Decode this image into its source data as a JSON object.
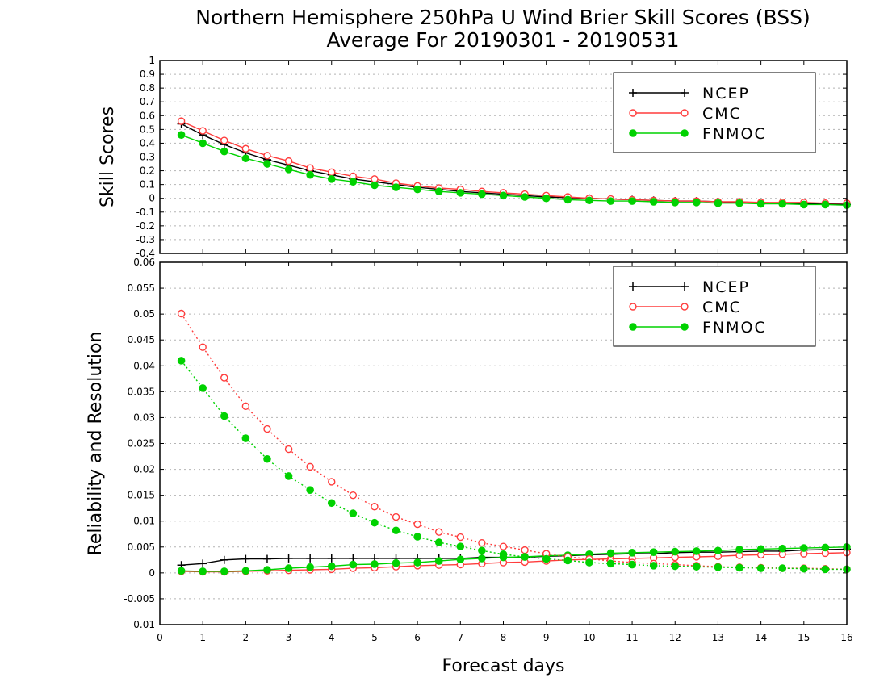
{
  "title_line1": "Northern Hemisphere 250hPa U Wind Brier Skill Scores (BSS)",
  "title_line2": "Average For 20190301 - 20190531",
  "colors": {
    "NCEP": "#000000",
    "CMC": "#ff3c3c",
    "FNMOC": "#00d200"
  },
  "chart_data": [
    {
      "type": "line",
      "panel": "top",
      "ylabel": "Skill Scores",
      "xlabel": "",
      "xlim": [
        0,
        16
      ],
      "ylim": [
        -0.4,
        1
      ],
      "yticks": [
        -0.4,
        -0.3,
        -0.2,
        -0.1,
        0,
        0.1,
        0.2,
        0.3,
        0.4,
        0.5,
        0.6,
        0.7,
        0.8,
        0.9,
        1
      ],
      "ytick_labels": [
        "-0.4",
        "-0.3",
        "-0.2",
        "-0.1",
        "0",
        "0.1",
        "0.2",
        "0.3",
        "0.4",
        "0.5",
        "0.6",
        "0.7",
        "0.8",
        "0.9",
        "1"
      ],
      "grid": true,
      "legend": "top-right",
      "x": [
        0.5,
        1,
        1.5,
        2,
        2.5,
        3,
        3.5,
        4,
        4.5,
        5,
        5.5,
        6,
        6.5,
        7,
        7.5,
        8,
        8.5,
        9,
        9.5,
        10,
        10.5,
        11,
        11.5,
        12,
        12.5,
        13,
        13.5,
        14,
        14.5,
        15,
        15.5,
        16
      ],
      "series": [
        {
          "name": "NCEP",
          "marker": "plus",
          "style": "solid",
          "values": [
            0.54,
            0.46,
            0.39,
            0.33,
            0.28,
            0.24,
            0.2,
            0.17,
            0.14,
            0.12,
            0.1,
            0.08,
            0.065,
            0.05,
            0.04,
            0.03,
            0.02,
            0.01,
            0.005,
            0.0,
            -0.005,
            -0.01,
            -0.015,
            -0.02,
            -0.02,
            -0.025,
            -0.03,
            -0.03,
            -0.035,
            -0.04,
            -0.04,
            -0.045
          ]
        },
        {
          "name": "CMC",
          "marker": "open-circle",
          "style": "solid",
          "values": [
            0.56,
            0.49,
            0.42,
            0.36,
            0.31,
            0.27,
            0.22,
            0.19,
            0.16,
            0.14,
            0.11,
            0.09,
            0.075,
            0.065,
            0.05,
            0.04,
            0.03,
            0.02,
            0.01,
            0.0,
            -0.005,
            -0.01,
            -0.015,
            -0.02,
            -0.02,
            -0.025,
            -0.025,
            -0.03,
            -0.03,
            -0.03,
            -0.035,
            -0.035
          ]
        },
        {
          "name": "FNMOC",
          "marker": "filled-circle",
          "style": "solid",
          "values": [
            0.46,
            0.4,
            0.34,
            0.29,
            0.25,
            0.21,
            0.17,
            0.14,
            0.12,
            0.095,
            0.08,
            0.065,
            0.05,
            0.04,
            0.03,
            0.02,
            0.01,
            0.0,
            -0.01,
            -0.015,
            -0.02,
            -0.02,
            -0.025,
            -0.03,
            -0.03,
            -0.035,
            -0.035,
            -0.04,
            -0.04,
            -0.045,
            -0.045,
            -0.05
          ]
        }
      ]
    },
    {
      "type": "line",
      "panel": "bottom",
      "ylabel": "Reliability and Resolution",
      "xlabel": "Forecast days",
      "xlim": [
        0,
        16
      ],
      "ylim": [
        -0.01,
        0.06
      ],
      "xticks": [
        0,
        1,
        2,
        3,
        4,
        5,
        6,
        7,
        8,
        9,
        10,
        11,
        12,
        13,
        14,
        15,
        16
      ],
      "xtick_labels": [
        "0",
        "1",
        "2",
        "3",
        "4",
        "5",
        "6",
        "7",
        "8",
        "9",
        "10",
        "11",
        "12",
        "13",
        "14",
        "15",
        "16"
      ],
      "yticks": [
        -0.01,
        -0.005,
        0,
        0.005,
        0.01,
        0.015,
        0.02,
        0.025,
        0.03,
        0.035,
        0.04,
        0.045,
        0.05,
        0.055,
        0.06
      ],
      "ytick_labels": [
        "-0.01",
        "-0.005",
        "0",
        "0.005",
        "0.01",
        "0.015",
        "0.02",
        "0.025",
        "0.03",
        "0.035",
        "0.04",
        "0.045",
        "0.05",
        "0.055",
        "0.06"
      ],
      "grid": true,
      "legend": "top-right",
      "x": [
        0.5,
        1,
        1.5,
        2,
        2.5,
        3,
        3.5,
        4,
        4.5,
        5,
        5.5,
        6,
        6.5,
        7,
        7.5,
        8,
        8.5,
        9,
        9.5,
        10,
        10.5,
        11,
        11.5,
        12,
        12.5,
        13,
        13.5,
        14,
        14.5,
        15,
        15.5,
        16
      ],
      "series": [
        {
          "name": "NCEP",
          "group": "reliability",
          "marker": "plus",
          "style": "solid",
          "values": [
            0.0015,
            0.0018,
            0.0025,
            0.0027,
            0.0027,
            0.0028,
            0.0028,
            0.0028,
            0.0028,
            0.0028,
            0.0028,
            0.0028,
            0.0028,
            0.0028,
            0.003,
            0.003,
            0.003,
            0.0032,
            0.0033,
            0.0035,
            0.0036,
            0.0037,
            0.0037,
            0.0039,
            0.004,
            0.004,
            0.0041,
            0.0042,
            0.0042,
            0.0044,
            0.0045,
            0.0046
          ]
        },
        {
          "name": "CMC",
          "group": "reliability",
          "marker": "open-circle",
          "style": "solid",
          "values": [
            0.0003,
            0.0002,
            0.0002,
            0.0003,
            0.0004,
            0.0005,
            0.0006,
            0.0007,
            0.0009,
            0.001,
            0.0012,
            0.0014,
            0.0015,
            0.0016,
            0.0018,
            0.002,
            0.0021,
            0.0023,
            0.0025,
            0.0026,
            0.0027,
            0.0028,
            0.0029,
            0.003,
            0.0031,
            0.0032,
            0.0034,
            0.0035,
            0.0036,
            0.0037,
            0.0038,
            0.0039
          ]
        },
        {
          "name": "FNMOC",
          "group": "reliability",
          "marker": "filled-circle",
          "style": "solid",
          "values": [
            0.0004,
            0.0003,
            0.0003,
            0.0004,
            0.0006,
            0.0009,
            0.0011,
            0.0013,
            0.0016,
            0.0017,
            0.0019,
            0.002,
            0.0023,
            0.0026,
            0.0028,
            0.003,
            0.0031,
            0.0033,
            0.0034,
            0.0036,
            0.0038,
            0.0039,
            0.004,
            0.0041,
            0.0042,
            0.0043,
            0.0045,
            0.0046,
            0.0047,
            0.0048,
            0.0049,
            0.005
          ]
        },
        {
          "name": "CMC",
          "group": "resolution",
          "marker": "open-circle",
          "style": "dotted",
          "values": [
            0.0501,
            0.0436,
            0.0377,
            0.0322,
            0.0278,
            0.0239,
            0.0205,
            0.0176,
            0.015,
            0.0128,
            0.0108,
            0.0094,
            0.0079,
            0.0069,
            0.0058,
            0.0051,
            0.0044,
            0.0037,
            0.0031,
            0.0027,
            0.0023,
            0.002,
            0.0018,
            0.0016,
            0.0014,
            0.0012,
            0.0011,
            0.001,
            0.0009,
            0.0009,
            0.0008,
            0.0007
          ]
        },
        {
          "name": "FNMOC",
          "group": "resolution",
          "marker": "filled-circle",
          "style": "dotted",
          "values": [
            0.041,
            0.0357,
            0.0303,
            0.026,
            0.022,
            0.0187,
            0.016,
            0.0135,
            0.0115,
            0.0097,
            0.0082,
            0.007,
            0.0059,
            0.0051,
            0.0043,
            0.0036,
            0.0031,
            0.0027,
            0.0024,
            0.002,
            0.0018,
            0.0016,
            0.0014,
            0.0013,
            0.0012,
            0.0011,
            0.001,
            0.0009,
            0.0009,
            0.0008,
            0.0007,
            0.0007
          ]
        }
      ]
    }
  ]
}
